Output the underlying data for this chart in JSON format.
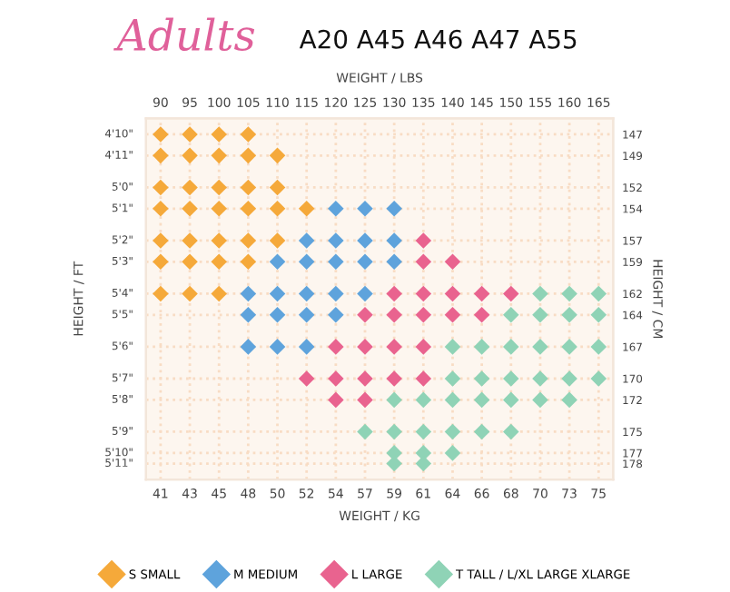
{
  "chart_data": {
    "type": "scatter",
    "title": "Adults",
    "subtitle": "A20 A45 A46 A47 A55",
    "xlabel": "WEIGHT / LBS",
    "x2label": "WEIGHT / KG",
    "ylabel": "HEIGHT / CM",
    "annotations": [
      "4'10\"",
      "4'11\"",
      "5'0\"",
      "5'1\"",
      "5'2\"",
      "5'3\"",
      "5'4\"",
      "5'5\"",
      "5'6\"",
      "5'7\"",
      "5'8\"",
      "5'9\"",
      "5'10\"",
      "5'11\"",
      "HEIGHT / FT"
    ],
    "xlim": [
      87.5,
      167.5
    ],
    "xticks": [
      90,
      95,
      100,
      105,
      110,
      115,
      120,
      125,
      130,
      135,
      140,
      145,
      150,
      155,
      160,
      165
    ],
    "x2lim": [
      39.69,
      75.98
    ],
    "x2ticks": [
      {
        "value": 40.82,
        "label": "41"
      },
      {
        "value": 43.09,
        "label": "43"
      },
      {
        "value": 45.36,
        "label": "45"
      },
      {
        "value": 47.63,
        "label": "48"
      },
      {
        "value": 49.9,
        "label": "50"
      },
      {
        "value": 52.16,
        "label": "52"
      },
      {
        "value": 54.43,
        "label": "54"
      },
      {
        "value": 56.7,
        "label": "57"
      },
      {
        "value": 58.97,
        "label": "59"
      },
      {
        "value": 61.23,
        "label": "61"
      },
      {
        "value": 63.5,
        "label": "64"
      },
      {
        "value": 65.77,
        "label": "66"
      },
      {
        "value": 68.04,
        "label": "68"
      },
      {
        "value": 70.31,
        "label": "70"
      },
      {
        "value": 72.57,
        "label": "73"
      },
      {
        "value": 74.84,
        "label": "75"
      }
    ],
    "ylim": [
      179.5,
      145.5
    ],
    "yticks": [
      147,
      149,
      152,
      154,
      157,
      159,
      162,
      164,
      167,
      170,
      172,
      175,
      177,
      178
    ],
    "grid": true,
    "marker": "diamond",
    "legend": "bottom",
    "series": [
      {
        "name": "S SMALL",
        "color": "#f5a93a",
        "x": [
          90,
          95,
          100,
          105,
          90,
          95,
          100,
          105,
          110,
          90,
          95,
          100,
          105,
          110,
          90,
          95,
          100,
          105,
          110,
          115,
          90,
          95,
          100,
          105,
          110,
          90,
          95,
          100,
          105,
          90,
          95,
          100
        ],
        "values": [
          147,
          147,
          147,
          147,
          149,
          149,
          149,
          149,
          149,
          152,
          152,
          152,
          152,
          152,
          154,
          154,
          154,
          154,
          154,
          154,
          157,
          157,
          157,
          157,
          157,
          159,
          159,
          159,
          159,
          162,
          162,
          162
        ]
      },
      {
        "name": "M MEDIUM",
        "color": "#5ea3dc",
        "x": [
          120,
          125,
          130,
          115,
          120,
          125,
          130,
          110,
          115,
          120,
          125,
          130,
          105,
          110,
          115,
          120,
          125,
          105,
          110,
          115,
          120,
          105,
          110,
          115
        ],
        "values": [
          154,
          154,
          154,
          157,
          157,
          157,
          157,
          159,
          159,
          159,
          159,
          159,
          162,
          162,
          162,
          162,
          162,
          164,
          164,
          164,
          164,
          167,
          167,
          167
        ]
      },
      {
        "name": "L LARGE",
        "color": "#e9638f",
        "x": [
          135,
          135,
          140,
          130,
          135,
          140,
          145,
          150,
          125,
          130,
          135,
          140,
          145,
          120,
          125,
          130,
          135,
          115,
          120,
          125,
          130,
          135,
          120,
          125
        ],
        "values": [
          157,
          159,
          159,
          162,
          162,
          162,
          162,
          162,
          164,
          164,
          164,
          164,
          164,
          167,
          167,
          167,
          167,
          170,
          170,
          170,
          170,
          170,
          172,
          172
        ]
      },
      {
        "name": "T TALL / L/XL LARGE XLARGE",
        "color": "#8fd3b6",
        "x": [
          155,
          160,
          165,
          150,
          155,
          160,
          165,
          140,
          145,
          150,
          155,
          160,
          165,
          140,
          145,
          150,
          155,
          160,
          165,
          130,
          135,
          140,
          145,
          150,
          155,
          160,
          125,
          130,
          135,
          140,
          145,
          150,
          130,
          135,
          140,
          130,
          135
        ],
        "values": [
          162,
          162,
          162,
          164,
          164,
          164,
          164,
          167,
          167,
          167,
          167,
          167,
          167,
          170,
          170,
          170,
          170,
          170,
          170,
          172,
          172,
          172,
          172,
          172,
          172,
          172,
          175,
          175,
          175,
          175,
          175,
          175,
          177,
          177,
          177,
          178,
          178
        ]
      }
    ]
  }
}
